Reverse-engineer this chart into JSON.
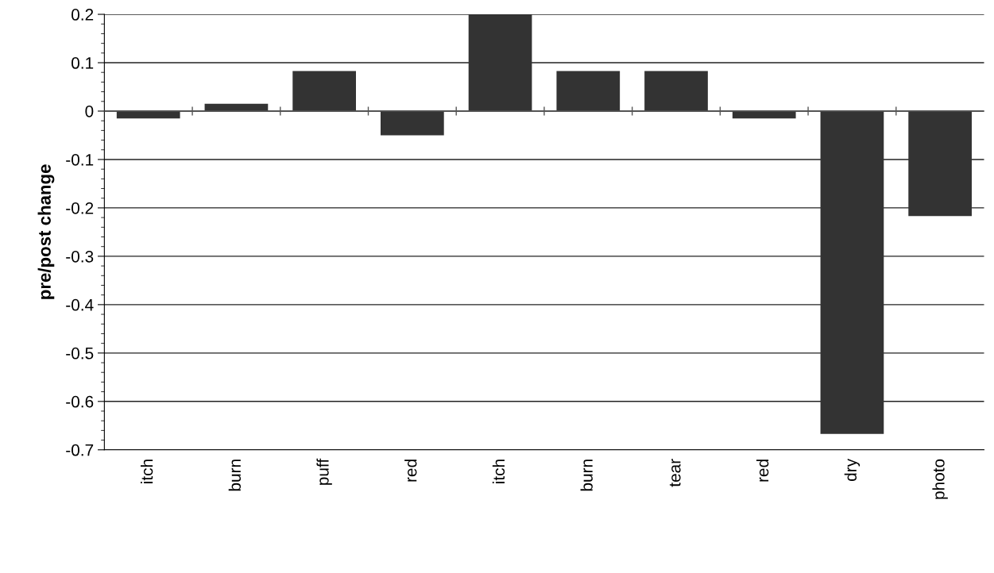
{
  "chart_data": {
    "type": "bar",
    "ylabel": "pre/post change",
    "categories": [
      "itch",
      "burn",
      "puff",
      "red",
      "itch",
      "burn",
      "tear",
      "red",
      "dry",
      "photo"
    ],
    "values": [
      -0.015,
      0.015,
      0.083,
      -0.05,
      0.2,
      0.083,
      0.083,
      -0.015,
      -0.667,
      -0.217
    ],
    "color": "#333333",
    "ylim": [
      -0.7,
      0.2
    ],
    "yticks": [
      -0.7,
      -0.6,
      -0.5,
      -0.4,
      -0.3,
      -0.2,
      -0.1,
      0,
      0.1,
      0.2
    ],
    "grid": "y"
  }
}
